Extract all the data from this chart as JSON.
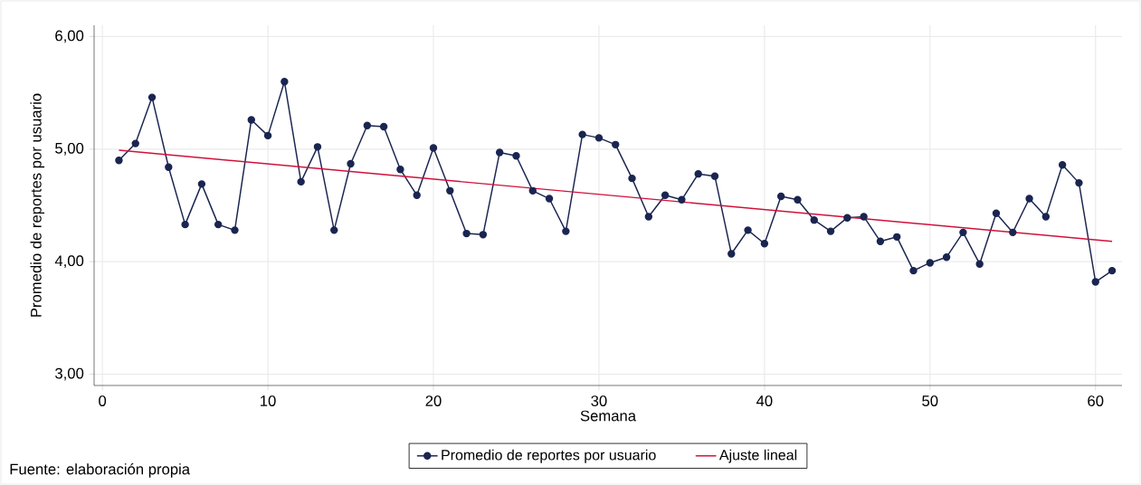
{
  "chart_data": {
    "type": "line",
    "xlabel": "Semana",
    "ylabel": "Promedio de reportes por usuario",
    "xlim": [
      -0.5,
      61.6
    ],
    "ylim": [
      2.9,
      6.1
    ],
    "xticks": [
      0,
      10,
      20,
      30,
      40,
      50,
      60
    ],
    "yticks": [
      {
        "value": 3,
        "label": "3,00"
      },
      {
        "value": 4,
        "label": "4,00"
      },
      {
        "value": 5,
        "label": "5,00"
      },
      {
        "value": 6,
        "label": "6,00"
      }
    ],
    "x": [
      1,
      2,
      3,
      4,
      5,
      6,
      7,
      8,
      9,
      10,
      11,
      12,
      13,
      14,
      15,
      16,
      17,
      18,
      19,
      20,
      21,
      22,
      23,
      24,
      25,
      26,
      27,
      28,
      29,
      30,
      31,
      32,
      33,
      34,
      35,
      36,
      37,
      38,
      39,
      40,
      41,
      42,
      43,
      44,
      45,
      46,
      47,
      48,
      49,
      50,
      51,
      52,
      53,
      54,
      55,
      56,
      57,
      58,
      59,
      60,
      61
    ],
    "series": [
      {
        "name": "Promedio de reportes por usuario",
        "color": "#1a2550",
        "marker": "circle",
        "values": [
          4.9,
          5.05,
          5.46,
          4.84,
          4.33,
          4.69,
          4.33,
          4.28,
          5.26,
          5.12,
          5.6,
          4.71,
          5.02,
          4.28,
          4.87,
          5.21,
          5.2,
          4.82,
          4.59,
          5.01,
          4.63,
          4.25,
          4.24,
          4.97,
          4.94,
          4.63,
          4.56,
          4.27,
          5.13,
          5.1,
          5.04,
          4.74,
          4.4,
          4.59,
          4.55,
          4.78,
          4.76,
          4.07,
          4.28,
          4.16,
          4.58,
          4.55,
          4.37,
          4.27,
          4.39,
          4.4,
          4.18,
          4.22,
          3.92,
          3.99,
          4.04,
          4.26,
          3.98,
          4.43,
          4.26,
          4.56,
          4.4,
          4.86,
          4.7,
          3.82,
          3.92
        ]
      },
      {
        "name": "Ajuste lineal",
        "color": "#d0103a",
        "marker": "none",
        "x": [
          1,
          61
        ],
        "values": [
          4.99,
          4.18
        ]
      }
    ],
    "grid": true,
    "legend": "bottom",
    "annotations": [
      "Fuente: elaboración propia"
    ]
  }
}
